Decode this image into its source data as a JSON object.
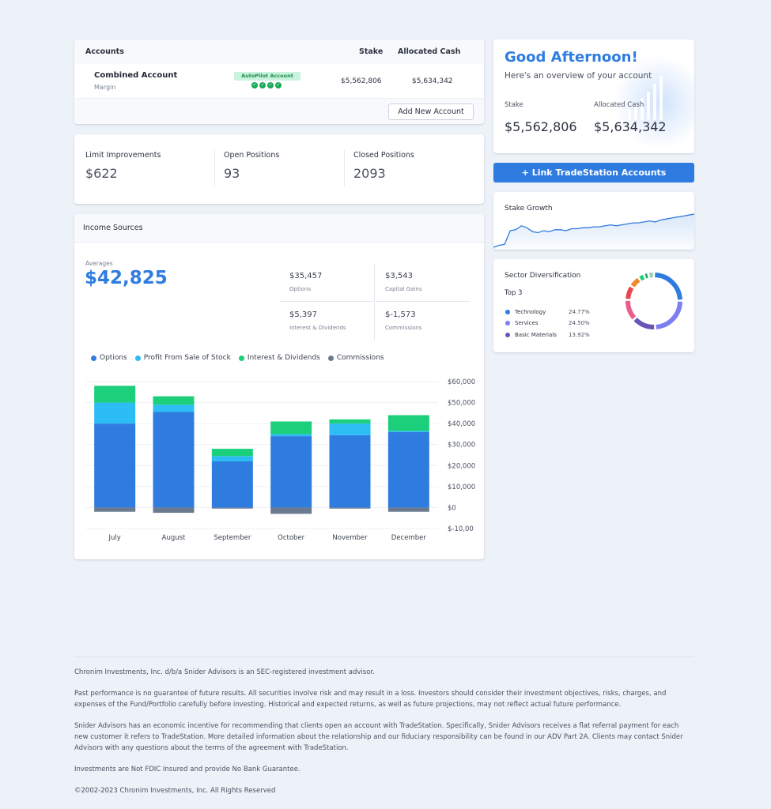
{
  "accounts": {
    "header": {
      "title": "Accounts",
      "stake": "Stake",
      "cash": "Allocated Cash"
    },
    "rows": [
      {
        "name": "Combined Account",
        "type": "Margin",
        "badge": "AutoPilot Account",
        "stake": "$5,562,806",
        "cash": "$5,634,342"
      }
    ],
    "add_button": "Add New Account"
  },
  "stats": [
    {
      "label": "Limit Improvements",
      "value": "$622"
    },
    {
      "label": "Open Positions",
      "value": "93"
    },
    {
      "label": "Closed Positions",
      "value": "2093"
    }
  ],
  "income": {
    "title": "Income Sources",
    "avg_label": "Averages",
    "avg_value": "$42,825",
    "breakdown": [
      {
        "value": "$35,457",
        "label": "Options"
      },
      {
        "value": "$3,543",
        "label": "Capital Gains"
      },
      {
        "value": "$5,397",
        "label": "Interest & Dividends"
      },
      {
        "value": "$-1,573",
        "label": "Commissions"
      }
    ],
    "legend": [
      {
        "name": "Options",
        "color": "#2f7ce0"
      },
      {
        "name": "Profit From Sale of Stock",
        "color": "#2bbdf4"
      },
      {
        "name": "Interest & Dividends",
        "color": "#1ccf7a"
      },
      {
        "name": "Commissions",
        "color": "#6b7a90"
      }
    ]
  },
  "chart_data": {
    "type": "bar",
    "stacked": true,
    "categories": [
      "July",
      "August",
      "September",
      "October",
      "November",
      "December"
    ],
    "series": [
      {
        "name": "Options",
        "values": [
          40000,
          45500,
          22000,
          34000,
          34500,
          36000
        ]
      },
      {
        "name": "Profit From Sale of Stock",
        "values": [
          10000,
          3500,
          2500,
          1000,
          5500,
          500
        ]
      },
      {
        "name": "Interest & Dividends",
        "values": [
          8000,
          4000,
          3500,
          6000,
          2000,
          7500
        ]
      },
      {
        "name": "Commissions",
        "values": [
          -2000,
          -2500,
          -500,
          -3000,
          -500,
          -2000
        ]
      }
    ],
    "y_ticks": [
      "$60,000",
      "$50,000",
      "$40,000",
      "$30,000",
      "$20,000",
      "$10,000",
      "$0",
      "$-10,00"
    ],
    "ylim": [
      -10000,
      60000
    ],
    "axis_position": "right",
    "grid": true
  },
  "greeting": {
    "title": "Good Afternoon!",
    "subtitle": "Here's an overview of your account",
    "stake_label": "Stake",
    "stake_value": "$5,562,806",
    "cash_label": "Allocated Cash",
    "cash_value": "$5,634,342"
  },
  "link_button": "Link TradeStation Accounts",
  "stake_growth": {
    "title": "Stake Growth",
    "values": [
      10,
      12,
      13,
      27,
      28,
      32,
      30,
      26,
      25,
      27,
      26,
      28,
      28,
      27,
      29,
      29,
      30,
      30,
      31,
      31,
      32,
      33,
      32,
      33,
      34,
      35,
      35,
      36,
      37,
      36,
      38,
      39,
      40,
      41,
      42,
      43,
      44
    ]
  },
  "sector": {
    "title": "Sector Diversification",
    "top_label": "Top 3",
    "items": [
      {
        "name": "Technology",
        "pct": "24.77%",
        "color": "#2f7ce0"
      },
      {
        "name": "Services",
        "pct": "24.50%",
        "color": "#7b7ff0"
      },
      {
        "name": "Basic Materials",
        "pct": "13.92%",
        "color": "#6a55b5"
      }
    ],
    "donut": [
      {
        "value": 24.77,
        "color": "#2f7ce0"
      },
      {
        "value": 24.5,
        "color": "#7b7ff0"
      },
      {
        "value": 13.92,
        "color": "#6a55b5"
      },
      {
        "value": 12.5,
        "color": "#ec5b8e"
      },
      {
        "value": 8.5,
        "color": "#e8474f"
      },
      {
        "value": 6.5,
        "color": "#f08a2c"
      },
      {
        "value": 3.5,
        "color": "#1ccf7a"
      },
      {
        "value": 2.5,
        "color": "#2a9d62"
      },
      {
        "value": 3.31,
        "color": "#8fd3a8"
      }
    ]
  },
  "footer": [
    "Chronim Investments, Inc. d/b/a Snider Advisors is an SEC-registered investment advisor.",
    "Past performance is no guarantee of future results. All securities involve risk and may result in a loss. Investors should consider their investment objectives, risks, charges, and expenses of the Fund/Portfolio carefully before investing. Historical and expected returns, as well as future projections, may not reflect actual future performance.",
    "Snider Advisors has an economic incentive for recommending that clients open an account with TradeStation. Specifically, Snider Advisors receives a flat referral payment for each new customer it refers to TradeStation. More detailed information about the relationship and our fiduciary responsibility can be found in our ADV Part 2A. Clients may contact Snider Advisors with any questions about the terms of the agreement with TradeStation.",
    "Investments are Not FDIC Insured and provide No Bank Guarantee.",
    "©2002-2023 Chronim Investments, Inc. All Rights Reserved"
  ]
}
